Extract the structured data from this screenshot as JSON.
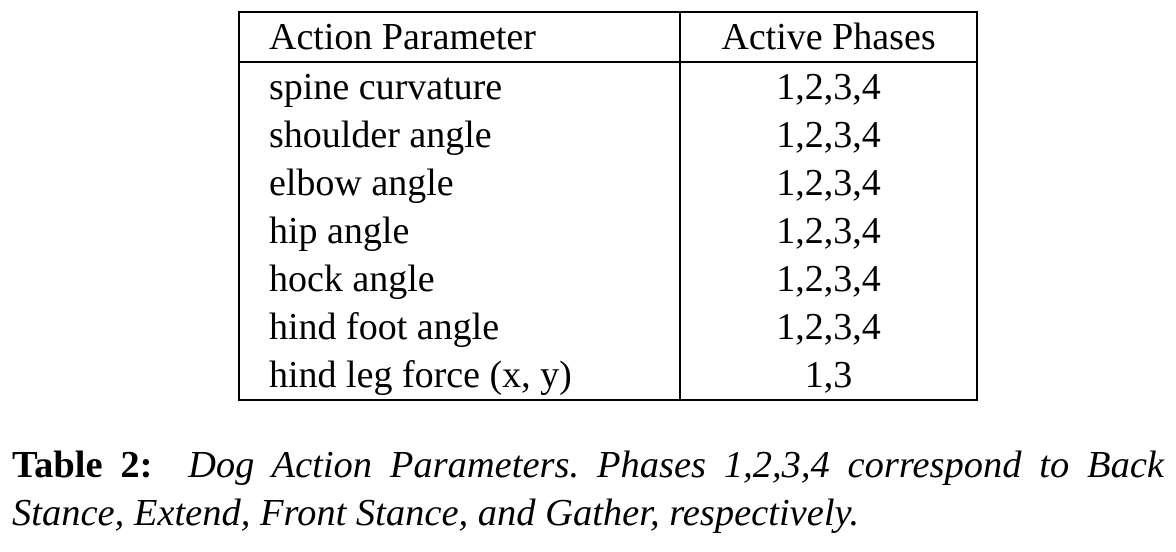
{
  "table": {
    "headers": [
      "Action Parameter",
      "Active Phases"
    ],
    "rows": [
      {
        "param": "spine curvature",
        "phases": "1,2,3,4"
      },
      {
        "param": "shoulder angle",
        "phases": "1,2,3,4"
      },
      {
        "param": "elbow angle",
        "phases": "1,2,3,4"
      },
      {
        "param": "hip angle",
        "phases": "1,2,3,4"
      },
      {
        "param": "hock angle",
        "phases": "1,2,3,4"
      },
      {
        "param": "hind foot angle",
        "phases": "1,2,3,4"
      },
      {
        "param": "hind leg force (x, y)",
        "phases": "1,3"
      }
    ]
  },
  "caption": {
    "label": "Table 2:",
    "text": "Dog Action Parameters.  Phases 1,2,3,4 correspond to Back Stance, Extend, Front Stance, and Gather, respectively."
  }
}
